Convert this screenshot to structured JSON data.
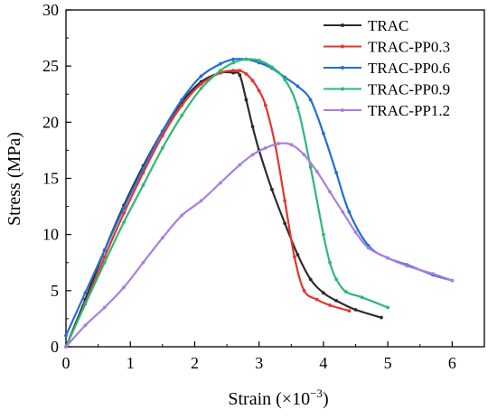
{
  "chart_data": {
    "type": "line",
    "xlabel": "Strain (×10",
    "xlabel_exp": "−3",
    "xlabel_close": ")",
    "ylabel": "Stress (MPa)",
    "xlim": [
      0,
      6.5
    ],
    "ylim": [
      0,
      30
    ],
    "xticks": [
      0,
      1,
      2,
      3,
      4,
      5,
      6
    ],
    "yticks": [
      0,
      5,
      10,
      15,
      20,
      25,
      30
    ],
    "grid": false,
    "legend_position": "top-right",
    "series": [
      {
        "name": "TRAC",
        "color": "#2b2b2b",
        "x": [
          0,
          0.3,
          0.6,
          0.9,
          1.2,
          1.5,
          1.8,
          2.1,
          2.4,
          2.6,
          2.7,
          2.8,
          2.9,
          3.0,
          3.2,
          3.4,
          3.6,
          3.8,
          4.0,
          4.2,
          4.5,
          4.9
        ],
        "y": [
          0,
          4.2,
          8.6,
          12.6,
          16.1,
          19.2,
          21.8,
          23.6,
          24.4,
          24.4,
          24.2,
          22.0,
          19.6,
          17.5,
          14.0,
          11.0,
          8.2,
          6.0,
          4.8,
          4.1,
          3.3,
          2.6
        ]
      },
      {
        "name": "TRAC-PP0.3",
        "color": "#e8332f",
        "x": [
          0,
          0.3,
          0.6,
          0.9,
          1.2,
          1.5,
          1.8,
          2.1,
          2.4,
          2.6,
          2.7,
          2.8,
          2.9,
          3.0,
          3.1,
          3.25,
          3.4,
          3.55,
          3.7,
          3.9,
          4.1,
          4.4
        ],
        "y": [
          0,
          3.9,
          8.0,
          11.9,
          15.5,
          18.8,
          21.5,
          23.4,
          24.4,
          24.6,
          24.6,
          24.3,
          23.7,
          22.8,
          21.5,
          18.0,
          13.0,
          8.0,
          5.0,
          4.2,
          3.7,
          3.2
        ]
      },
      {
        "name": "TRAC-PP0.6",
        "color": "#1f6fd6",
        "x": [
          0,
          0.3,
          0.6,
          0.9,
          1.2,
          1.5,
          1.8,
          2.1,
          2.4,
          2.6,
          2.8,
          3.0,
          3.2,
          3.4,
          3.6,
          3.8,
          4.0,
          4.2,
          4.4,
          4.7,
          5.0,
          5.3,
          5.7,
          6.0
        ],
        "y": [
          1.0,
          4.8,
          8.6,
          12.4,
          15.9,
          19.2,
          22.0,
          24.1,
          25.2,
          25.6,
          25.6,
          25.3,
          24.8,
          24.0,
          23.2,
          22.0,
          19.0,
          15.5,
          12.0,
          9.0,
          7.9,
          7.3,
          6.4,
          5.9
        ]
      },
      {
        "name": "TRAC-PP0.9",
        "color": "#2eb873",
        "x": [
          0,
          0.3,
          0.6,
          0.9,
          1.2,
          1.5,
          1.8,
          2.1,
          2.4,
          2.6,
          2.8,
          3.0,
          3.2,
          3.4,
          3.6,
          3.8,
          4.0,
          4.1,
          4.2,
          4.35,
          4.6,
          5.0
        ],
        "y": [
          0,
          3.8,
          7.5,
          11.1,
          14.4,
          17.7,
          20.6,
          23.0,
          24.6,
          25.3,
          25.6,
          25.5,
          24.9,
          23.8,
          21.3,
          16.0,
          10.0,
          7.5,
          6.0,
          4.9,
          4.4,
          3.5
        ]
      },
      {
        "name": "TRAC-PP1.2",
        "color": "#a97ee0",
        "x": [
          0,
          0.3,
          0.6,
          0.9,
          1.2,
          1.5,
          1.8,
          2.1,
          2.4,
          2.7,
          2.9,
          3.1,
          3.3,
          3.5,
          3.7,
          3.9,
          4.1,
          4.3,
          4.5,
          4.7,
          5.0,
          5.3,
          5.7,
          6.0
        ],
        "y": [
          0,
          1.9,
          3.5,
          5.3,
          7.5,
          9.7,
          11.7,
          13.0,
          14.6,
          16.2,
          17.1,
          17.7,
          18.1,
          18.0,
          17.1,
          15.6,
          13.8,
          12.0,
          10.2,
          8.8,
          7.9,
          7.2,
          6.5,
          5.9
        ]
      }
    ]
  }
}
